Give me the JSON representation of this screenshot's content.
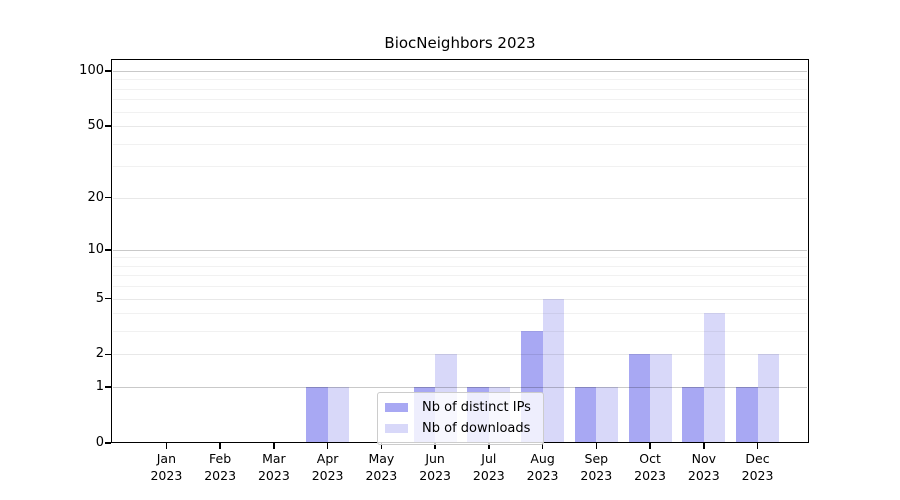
{
  "title": "BiocNeighbors 2023",
  "chart_data": {
    "type": "bar",
    "title": "BiocNeighbors 2023",
    "categories": [
      "Jan",
      "Feb",
      "Mar",
      "Apr",
      "May",
      "Jun",
      "Jul",
      "Aug",
      "Sep",
      "Oct",
      "Nov",
      "Dec"
    ],
    "year_label": "2023",
    "series": [
      {
        "name": "Nb of distinct IPs",
        "color": "#a8a8f3",
        "values": [
          0,
          0,
          0,
          1,
          0,
          1,
          1,
          3,
          1,
          2,
          1,
          1
        ]
      },
      {
        "name": "Nb of downloads",
        "color": "#d8d8f9",
        "values": [
          0,
          0,
          0,
          1,
          0,
          2,
          1,
          5,
          1,
          2,
          4,
          2
        ]
      }
    ],
    "y_axis": {
      "scale": "log1p",
      "tick_values": [
        0,
        1,
        2,
        5,
        10,
        20,
        50,
        100
      ],
      "tick_labels": [
        "0",
        "1",
        "2",
        "5",
        "10",
        "20",
        "50",
        "100"
      ],
      "minor_gridline_values": [
        3,
        4,
        6,
        7,
        8,
        9,
        30,
        40,
        60,
        70,
        80,
        90
      ],
      "emphasized_gridline_values": [
        1,
        10,
        100
      ]
    },
    "x_axis": {
      "tick_labels_line1": [
        "Jan",
        "Feb",
        "Mar",
        "Apr",
        "May",
        "Jun",
        "Jul",
        "Aug",
        "Sep",
        "Oct",
        "Nov",
        "Dec"
      ],
      "tick_labels_line2": [
        "2023",
        "2023",
        "2023",
        "2023",
        "2023",
        "2023",
        "2023",
        "2023",
        "2023",
        "2023",
        "2023",
        "2023"
      ]
    },
    "legend": {
      "position": "lower center",
      "entries": [
        "Nb of distinct IPs",
        "Nb of downloads"
      ]
    },
    "grid": true
  },
  "colors": {
    "background": "#ffffff",
    "spine": "#000000",
    "text": "#000000",
    "bar_distinct_ips": "#a8a8f3",
    "bar_downloads": "#d8d8f9",
    "legend_border": "#cccccc"
  }
}
